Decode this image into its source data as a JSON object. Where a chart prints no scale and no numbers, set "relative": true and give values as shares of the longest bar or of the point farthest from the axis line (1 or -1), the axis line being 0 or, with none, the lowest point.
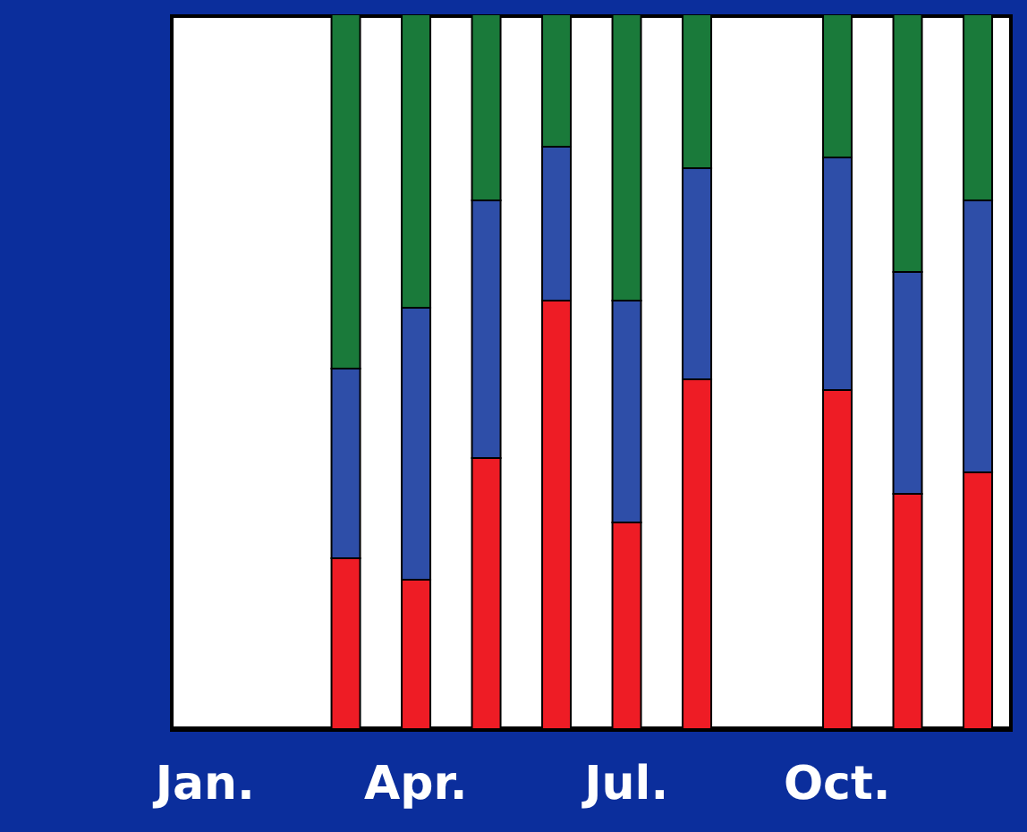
{
  "chart_data": {
    "type": "bar",
    "stacked": true,
    "relative": true,
    "categories": [
      "Jan.",
      null,
      null,
      "Apr.",
      null,
      null,
      "Jul.",
      null,
      null,
      "Oct.",
      null,
      null
    ],
    "series": [
      {
        "color": "#ee1c25",
        "values": [
          null,
          null,
          0.24,
          0.21,
          0.38,
          0.6,
          0.29,
          0.49,
          null,
          0.475,
          0.33,
          0.36
        ]
      },
      {
        "color": "#2e4ea8",
        "values": [
          null,
          null,
          0.265,
          0.38,
          0.36,
          0.215,
          0.31,
          0.295,
          null,
          0.325,
          0.31,
          0.38
        ]
      },
      {
        "color": "#1a7a3a",
        "values": [
          null,
          null,
          0.495,
          0.41,
          0.26,
          0.185,
          0.4,
          0.215,
          null,
          0.2,
          0.36,
          0.26
        ]
      }
    ]
  }
}
